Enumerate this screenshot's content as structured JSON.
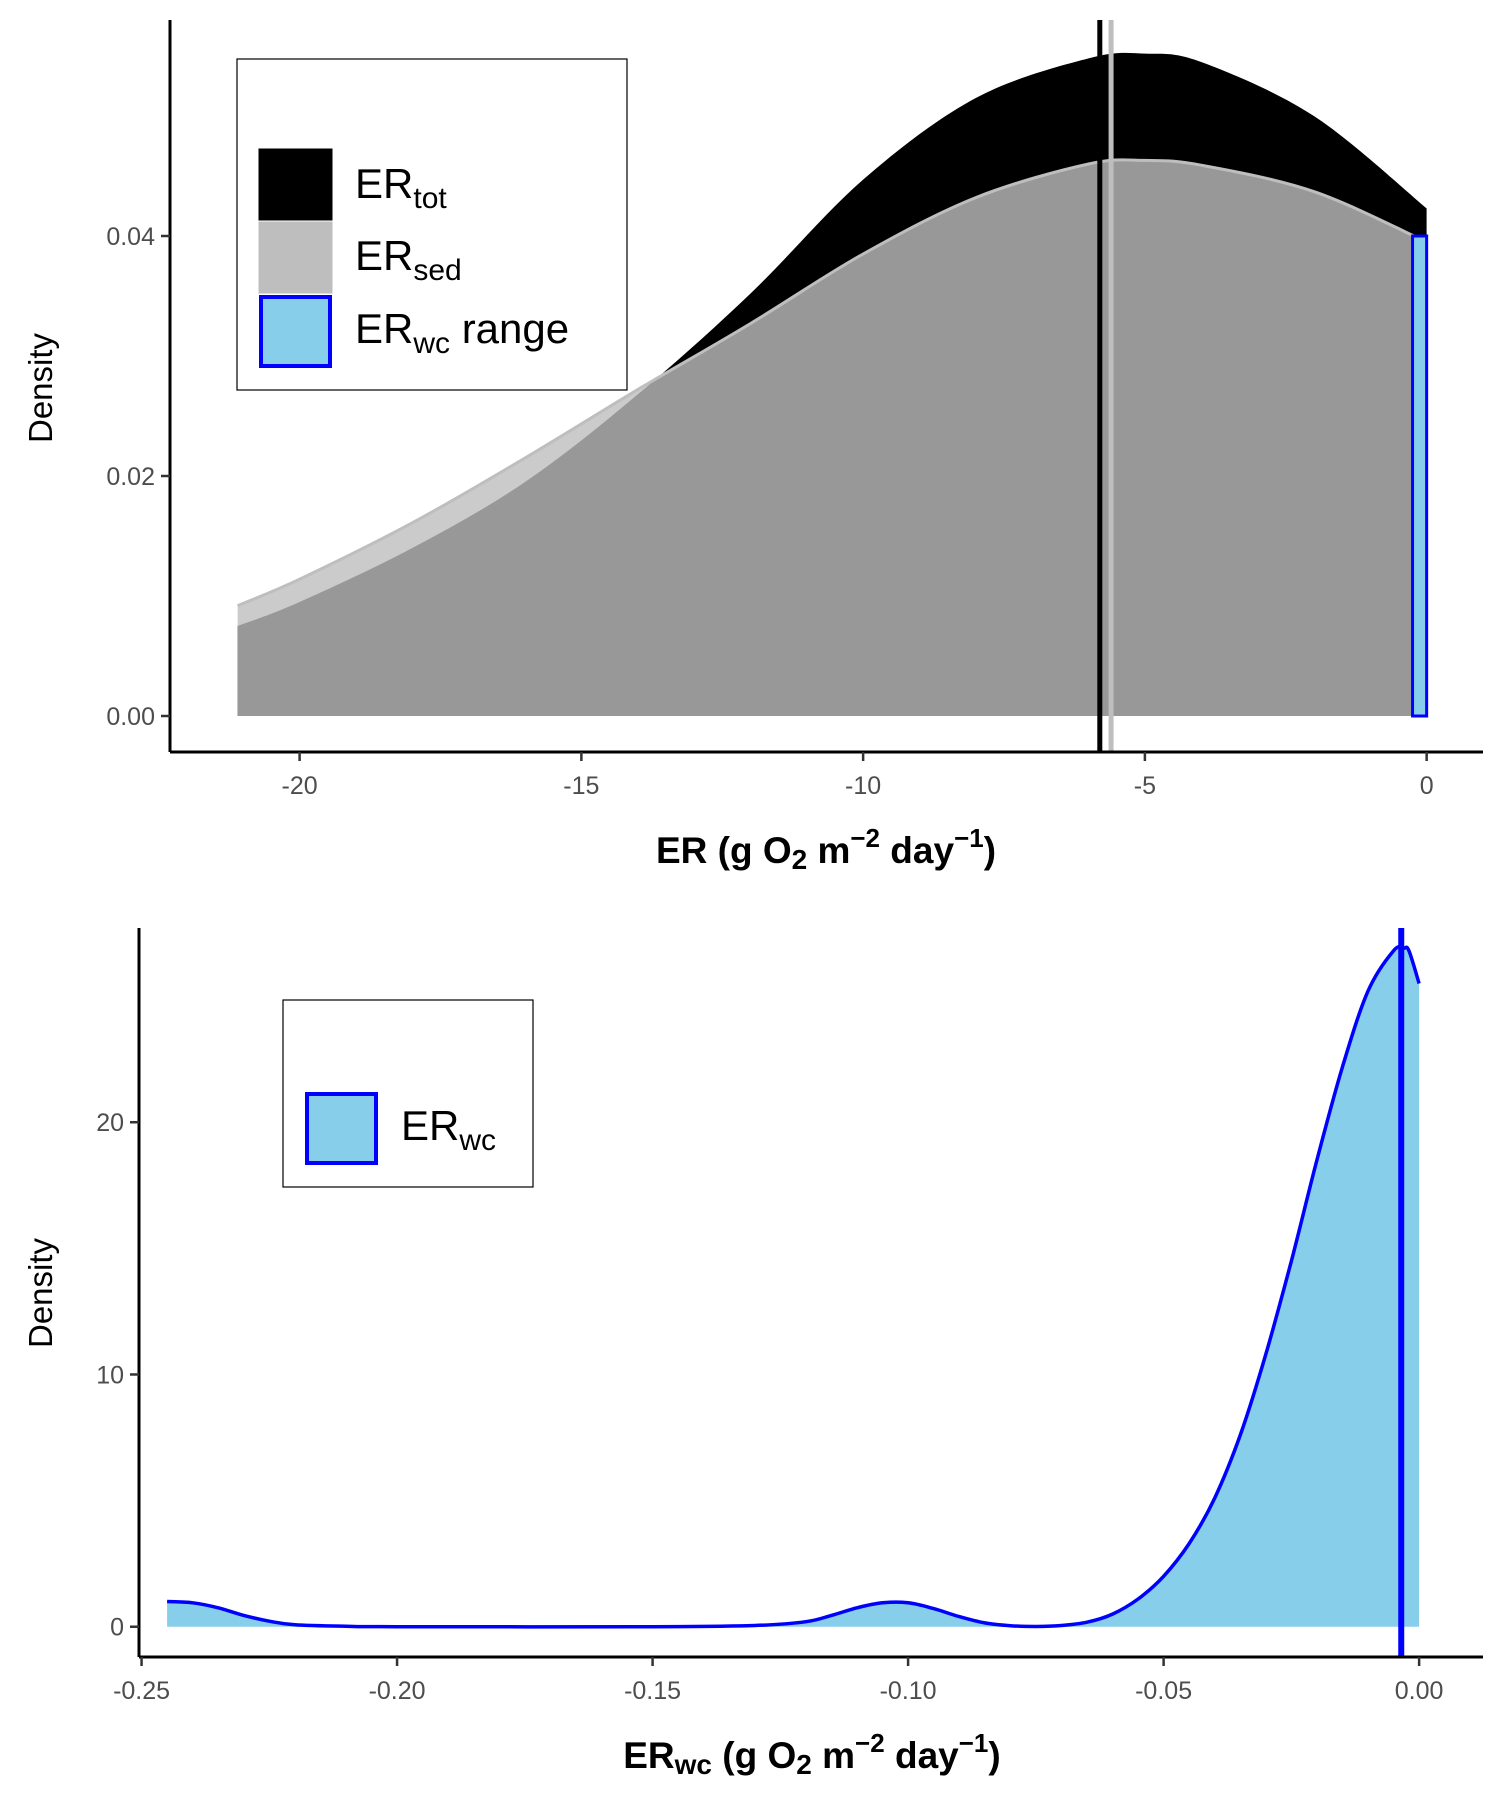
{
  "colors": {
    "er_tot": "#000000",
    "er_sed_line": "#bebebe",
    "er_sed_fill": "#999999",
    "er_wc_fill": "#87ceeb",
    "er_wc_line": "#0000ff"
  },
  "chart_data": [
    {
      "type": "area",
      "xlabel": {
        "main": "ER (g O",
        "sub": "2",
        "mid": " m",
        "sup1": "−2",
        "mid2": " day",
        "sup2": "−1",
        "end": ")"
      },
      "ylabel": "Density",
      "xlim": [
        -22.3,
        1.0
      ],
      "ylim": [
        -0.003,
        0.058
      ],
      "xticks": [
        -20,
        -15,
        -10,
        -5,
        0
      ],
      "xtick_labels": [
        "-20",
        "-15",
        "-10",
        "-5",
        "0"
      ],
      "yticks": [
        0.0,
        0.02,
        0.04
      ],
      "ytick_labels": [
        "0.00",
        "0.02",
        "0.04"
      ],
      "legend": {
        "position": "top-left",
        "entries": [
          {
            "key": "er_tot",
            "base": "ER",
            "sub": "tot",
            "suffix": ""
          },
          {
            "key": "er_sed",
            "base": "ER",
            "sub": "sed",
            "suffix": ""
          },
          {
            "key": "er_wc_range",
            "base": "ER",
            "sub": "wc",
            "suffix": " range"
          }
        ]
      },
      "series": [
        {
          "key": "er_tot",
          "x": [
            -21.1,
            -20,
            -18,
            -16,
            -14,
            -12,
            -10,
            -8,
            -6,
            -5,
            -4,
            -2,
            0
          ],
          "y": [
            0.0075,
            0.0095,
            0.014,
            0.0195,
            0.0268,
            0.0352,
            0.0447,
            0.0515,
            0.0548,
            0.0552,
            0.0545,
            0.05,
            0.0423
          ]
        },
        {
          "key": "er_sed",
          "x": [
            -21.1,
            -20,
            -18,
            -16,
            -14,
            -12,
            -10,
            -8,
            -6,
            -5,
            -4,
            -2,
            0
          ],
          "y": [
            0.0092,
            0.0114,
            0.0161,
            0.0215,
            0.0272,
            0.0327,
            0.0385,
            0.0432,
            0.046,
            0.0463,
            0.0459,
            0.0437,
            0.0395
          ]
        }
      ],
      "vlines": [
        {
          "x": -5.8,
          "color_key": "er_tot"
        },
        {
          "x": -5.6,
          "color_key": "er_sed_line"
        }
      ],
      "wc_range_rect": {
        "xmin": -0.25,
        "xmax": 0.0,
        "ymax": 0.04
      }
    },
    {
      "type": "area",
      "xlabel": {
        "main": "ER",
        "sub0": "wc",
        "mid0": " (g O",
        "sub": "2",
        "mid": " m",
        "sup1": "−2",
        "mid2": " day",
        "sup2": "−1",
        "end": ")"
      },
      "ylabel": "Density",
      "xlim": [
        -0.2505,
        0.0125
      ],
      "ylim": [
        -1.2,
        27.7
      ],
      "xticks": [
        -0.25,
        -0.2,
        -0.15,
        -0.1,
        -0.05,
        0.0
      ],
      "xtick_labels": [
        "-0.25",
        "-0.20",
        "-0.15",
        "-0.10",
        "-0.05",
        "0.00"
      ],
      "yticks": [
        0,
        10,
        20
      ],
      "ytick_labels": [
        "0",
        "10",
        "20"
      ],
      "legend": {
        "position": "top-left",
        "entries": [
          {
            "key": "er_wc",
            "base": "ER",
            "sub": "wc",
            "suffix": ""
          }
        ]
      },
      "series": [
        {
          "key": "er_wc",
          "x": [
            -0.245,
            -0.24,
            -0.235,
            -0.23,
            -0.225,
            -0.22,
            -0.21,
            -0.2,
            -0.15,
            -0.13,
            -0.12,
            -0.115,
            -0.11,
            -0.105,
            -0.1,
            -0.095,
            -0.09,
            -0.085,
            -0.08,
            -0.075,
            -0.07,
            -0.065,
            -0.06,
            -0.055,
            -0.05,
            -0.045,
            -0.04,
            -0.035,
            -0.03,
            -0.025,
            -0.02,
            -0.015,
            -0.01,
            -0.005,
            -0.003,
            -0.002,
            0.0
          ],
          "y": [
            1.0,
            0.95,
            0.75,
            0.45,
            0.22,
            0.08,
            0.02,
            0.0,
            0.0,
            0.05,
            0.2,
            0.45,
            0.75,
            0.95,
            0.95,
            0.72,
            0.4,
            0.15,
            0.04,
            0.01,
            0.05,
            0.18,
            0.5,
            1.1,
            2.0,
            3.3,
            5.1,
            7.6,
            10.8,
            14.5,
            18.5,
            22.2,
            25.2,
            26.8,
            26.9,
            26.8,
            25.5
          ]
        }
      ],
      "vlines": [
        {
          "x": -0.0035,
          "color_key": "er_wc_line"
        }
      ]
    }
  ]
}
